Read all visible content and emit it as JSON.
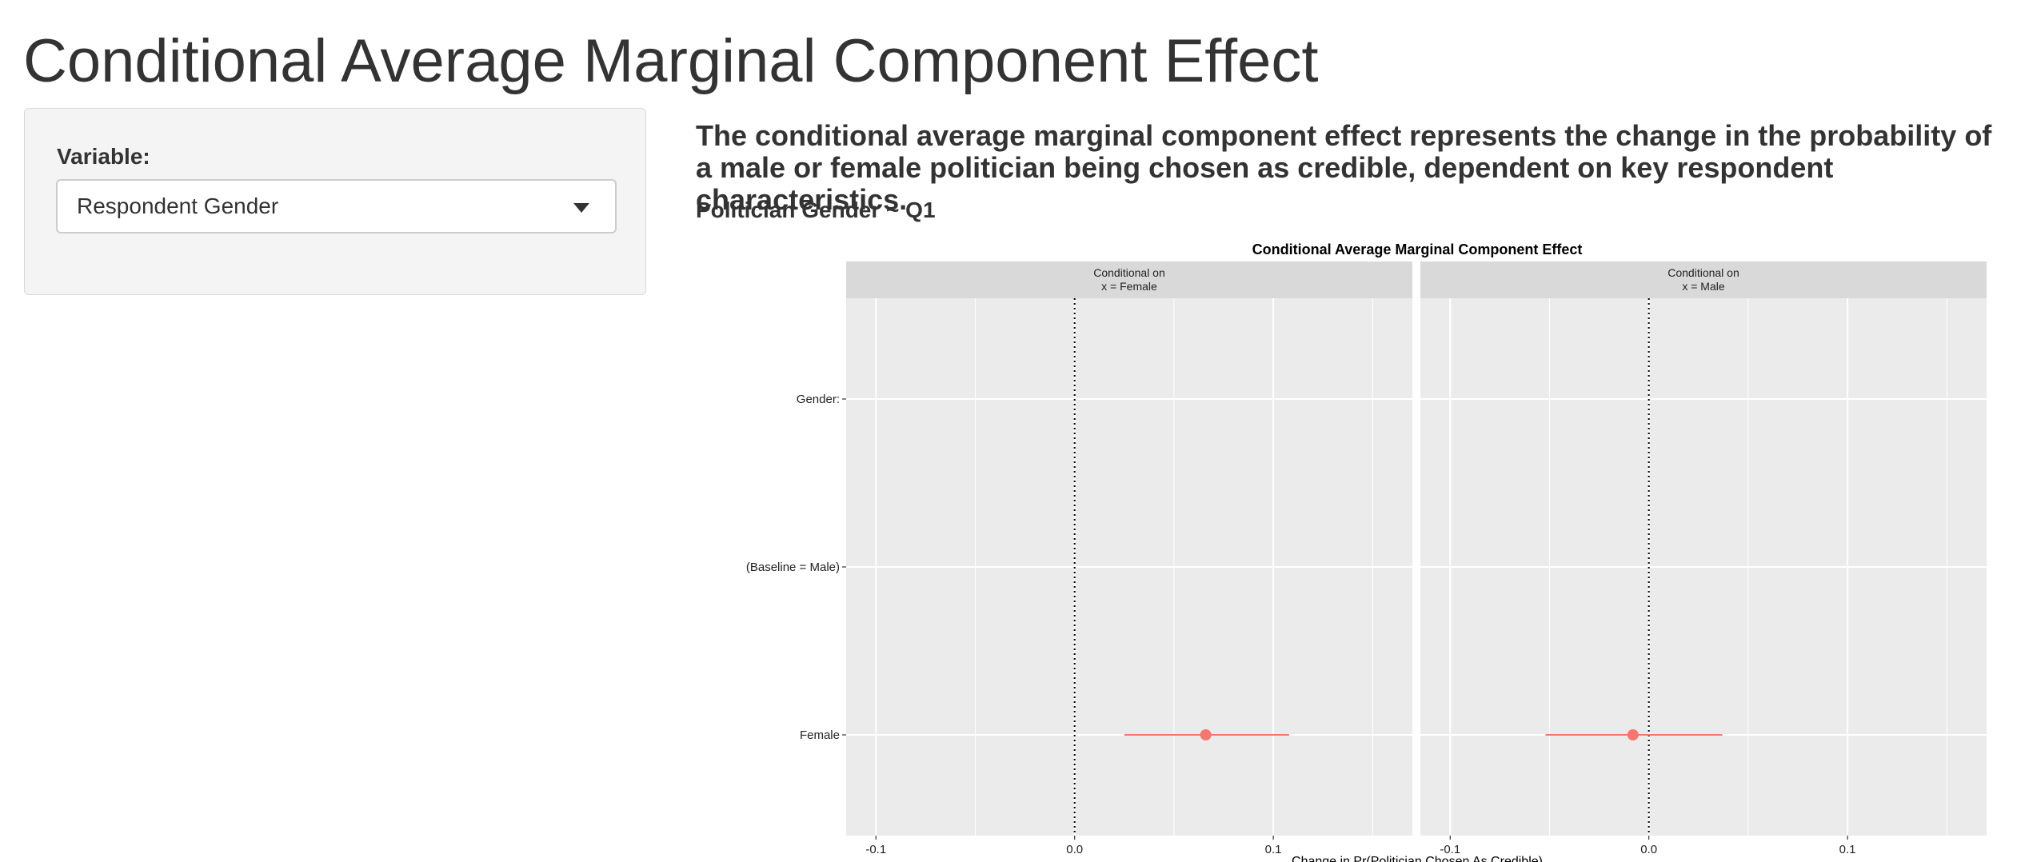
{
  "page": {
    "title": "Conditional Average Marginal Component Effect"
  },
  "sidebar": {
    "variable_label": "Variable:",
    "variable_select": {
      "value": "Respondent Gender"
    }
  },
  "main": {
    "description": "The conditional average marginal component effect represents the change in the probability of a male or female politician being chosen as credible, dependent on key respondent characteristics.",
    "subheading": "Politician Gender ~ Q1"
  },
  "colors": {
    "point": "#f8766d",
    "panel_bg": "#ebebeb",
    "strip_bg": "#d9d9d9",
    "grid": "#ffffff"
  },
  "chart_data": {
    "type": "scatter",
    "title": "Conditional Average Marginal Component Effect",
    "xlabel": "Change in Pr(Politician Chosen As Credible)",
    "y_categories": [
      "Gender:",
      "(Baseline = Male)",
      "Female"
    ],
    "xlim": [
      -0.115,
      0.17
    ],
    "x_ticks": [
      -0.1,
      0.0,
      0.1
    ],
    "x_tick_labels": [
      "-0.1",
      "0.0",
      "0.1"
    ],
    "reference_line": 0,
    "grid": true,
    "facets": [
      {
        "strip_line1": "Conditional on",
        "strip_line2": "x = Female",
        "points": [
          {
            "category": "Female",
            "estimate": 0.066,
            "lower": 0.025,
            "upper": 0.108
          }
        ]
      },
      {
        "strip_line1": "Conditional on",
        "strip_line2": "x = Male",
        "points": [
          {
            "category": "Female",
            "estimate": -0.008,
            "lower": -0.052,
            "upper": 0.037
          }
        ]
      }
    ]
  }
}
